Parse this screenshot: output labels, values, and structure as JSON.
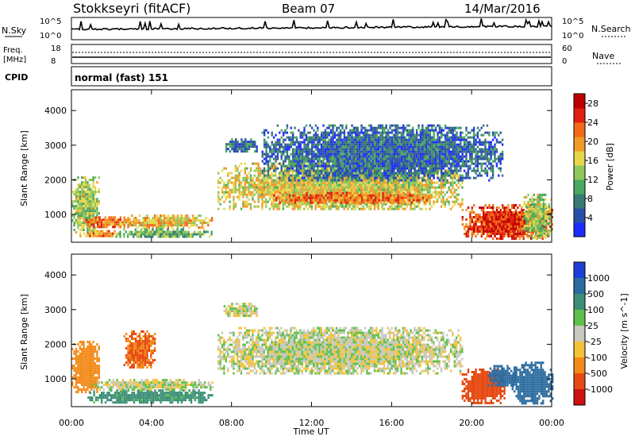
{
  "header": {
    "station": "Stokkseyri (fitACF)",
    "beam": "Beam 07",
    "date": "14/Mar/2016"
  },
  "noise_panel": {
    "left_label": "N.Sky",
    "right_label": "N.Search",
    "left_ticks": [
      "10^5",
      "10^0"
    ],
    "right_ticks": [
      "10^5",
      "10^0"
    ]
  },
  "freq_panel": {
    "left_label_top": "Freq.",
    "left_label_unit": "[MHz]",
    "right_label": "Nave",
    "left_ticks": [
      "18",
      "8"
    ],
    "right_ticks": [
      "60",
      "0"
    ],
    "freq_mhz_approx": 10,
    "nave_approx": 50
  },
  "cpid_panel": {
    "label": "CPID",
    "value": "normal (fast) 151"
  },
  "colors": {
    "background_scatter_grey": "#c8c8c0",
    "power_scale": [
      "#1f2cff",
      "#2b4fa8",
      "#3a7a74",
      "#4aa860",
      "#8ec85a",
      "#e7d64a",
      "#f29a28",
      "#f26a18",
      "#e02010",
      "#c00000"
    ],
    "velocity_scale": [
      "#1f3fd8",
      "#2d6ca0",
      "#3a8f76",
      "#5fbf4c",
      "#c8c8c0",
      "#f3c23a",
      "#f28a1a",
      "#e64a12",
      "#d01010"
    ]
  },
  "chart_data": [
    {
      "type": "heatmap",
      "name": "power",
      "xlabel": "",
      "ylabel": "Slant Range [km]",
      "xlim": [
        "00:00",
        "24:00"
      ],
      "ylim": [
        200,
        4600
      ],
      "x_ticks": [
        "00:00",
        "04:00",
        "08:00",
        "12:00",
        "16:00",
        "20:00",
        "00:00"
      ],
      "y_ticks": [
        1000,
        2000,
        3000,
        4000
      ],
      "colorbar": {
        "label": "Power [dB]",
        "ticks": [
          4,
          8,
          12,
          16,
          20,
          24,
          28
        ],
        "range": [
          0,
          30
        ]
      },
      "regions": [
        {
          "t0": 0.0,
          "t1": 1.4,
          "r0": 500,
          "r1": 2100,
          "value": 14
        },
        {
          "t0": 0.6,
          "t1": 3.0,
          "r0": 650,
          "r1": 950,
          "value": 22
        },
        {
          "t0": 0.4,
          "t1": 2.4,
          "r0": 350,
          "r1": 550,
          "value": 20
        },
        {
          "t0": 2.6,
          "t1": 7.0,
          "r0": 650,
          "r1": 1000,
          "value": 18
        },
        {
          "t0": 2.2,
          "t1": 7.0,
          "r0": 350,
          "r1": 600,
          "value": 12
        },
        {
          "t0": 7.3,
          "t1": 19.5,
          "r0": 1150,
          "r1": 2500,
          "value": 16
        },
        {
          "t0": 10.0,
          "t1": 18.0,
          "r0": 1350,
          "r1": 1650,
          "value": 22
        },
        {
          "t0": 7.6,
          "t1": 9.3,
          "r0": 2800,
          "r1": 3200,
          "value": 6
        },
        {
          "t0": 9.5,
          "t1": 21.5,
          "r0": 2000,
          "r1": 3600,
          "value": 6
        },
        {
          "t0": 19.5,
          "t1": 24.0,
          "r0": 300,
          "r1": 1300,
          "value": 24
        },
        {
          "t0": 20.6,
          "t1": 22.8,
          "r0": 500,
          "r1": 1100,
          "value": 27
        },
        {
          "t0": 22.5,
          "t1": 24.0,
          "r0": 300,
          "r1": 1600,
          "value": 14
        }
      ]
    },
    {
      "type": "heatmap",
      "name": "velocity",
      "xlabel": "Time UT",
      "ylabel": "Slant Range [km]",
      "xlim": [
        "00:00",
        "24:00"
      ],
      "ylim": [
        200,
        4600
      ],
      "x_ticks": [
        "00:00",
        "04:00",
        "08:00",
        "12:00",
        "16:00",
        "20:00",
        "00:00"
      ],
      "y_ticks": [
        1000,
        2000,
        3000,
        4000
      ],
      "colorbar": {
        "label": "Velocity [m s^-1]",
        "ticks": [
          1000,
          500,
          100,
          25,
          -25,
          -100,
          -500,
          -1000
        ]
      },
      "regions": [
        {
          "t0": 0.0,
          "t1": 1.4,
          "r0": 600,
          "r1": 2100,
          "value": -300
        },
        {
          "t0": 2.6,
          "t1": 4.2,
          "r0": 1300,
          "r1": 2400,
          "value": -500
        },
        {
          "t0": 0.8,
          "t1": 7.0,
          "r0": 350,
          "r1": 700,
          "value": 150
        },
        {
          "t0": 1.0,
          "t1": 7.0,
          "r0": 700,
          "r1": 1000,
          "value": 0
        },
        {
          "t0": 7.3,
          "t1": 19.5,
          "r0": 1150,
          "r1": 2500,
          "value": 0
        },
        {
          "t0": 7.6,
          "t1": 9.3,
          "r0": 2800,
          "r1": 3200,
          "value": 0
        },
        {
          "t0": 19.5,
          "t1": 21.6,
          "r0": 300,
          "r1": 1300,
          "value": -800
        },
        {
          "t0": 20.8,
          "t1": 22.2,
          "r0": 800,
          "r1": 1400,
          "value": 600
        },
        {
          "t0": 22.0,
          "t1": 24.0,
          "r0": 300,
          "r1": 1500,
          "value": 700
        }
      ]
    }
  ]
}
